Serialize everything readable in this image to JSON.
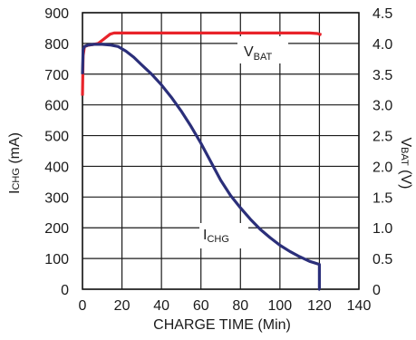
{
  "chart_data": {
    "type": "line",
    "xlabel": "CHARGE TIME (Min)",
    "ylabel_left": {
      "main": "I",
      "sub": "CHG",
      "suffix": " (mA)"
    },
    "ylabel_right": {
      "main": "V",
      "sub": "BAT",
      "suffix": " (V)"
    },
    "xlim": [
      0,
      140
    ],
    "ylim_left": [
      0,
      900
    ],
    "ylim_right": [
      0,
      4.5
    ],
    "x_ticks": [
      "0",
      "20",
      "40",
      "60",
      "80",
      "100",
      "120",
      "140"
    ],
    "y_left_ticks": [
      "0",
      "100",
      "200",
      "300",
      "400",
      "500",
      "600",
      "700",
      "800",
      "900"
    ],
    "y_right_ticks": [
      "0",
      "0.5",
      "1.0",
      "1.5",
      "2.0",
      "2.5",
      "3.0",
      "3.5",
      "4.0",
      "4.5"
    ],
    "grid": true,
    "colors": {
      "ichg": "#2b2f7a",
      "vbat": "#e8232a",
      "grid": "#1a1a1a"
    },
    "series": [
      {
        "name": "ICHG",
        "axis": "left",
        "label": {
          "main": "I",
          "sub": "CHG"
        },
        "x": [
          0,
          0.3,
          1,
          3,
          6,
          10,
          14,
          18,
          22,
          26,
          30,
          35,
          40,
          45,
          50,
          55,
          60,
          65,
          70,
          75,
          80,
          85,
          90,
          95,
          100,
          105,
          110,
          115,
          120,
          120,
          120.3
        ],
        "y": [
          700,
          780,
          790,
          795,
          797,
          797,
          795,
          790,
          775,
          755,
          730,
          700,
          665,
          625,
          580,
          530,
          475,
          415,
          355,
          305,
          265,
          228,
          195,
          168,
          143,
          123,
          106,
          91,
          81,
          0,
          0
        ]
      },
      {
        "name": "VBAT",
        "axis": "right",
        "label": {
          "main": "V",
          "sub": "BAT"
        },
        "x": [
          0,
          0.3,
          1,
          3,
          5,
          8,
          10,
          12,
          14,
          16,
          20,
          40,
          60,
          80,
          100,
          115,
          119,
          121
        ],
        "y": [
          3.15,
          3.8,
          3.95,
          3.97,
          3.98,
          4.0,
          4.05,
          4.1,
          4.15,
          4.17,
          4.17,
          4.17,
          4.17,
          4.17,
          4.17,
          4.17,
          4.16,
          4.14
        ]
      }
    ]
  }
}
